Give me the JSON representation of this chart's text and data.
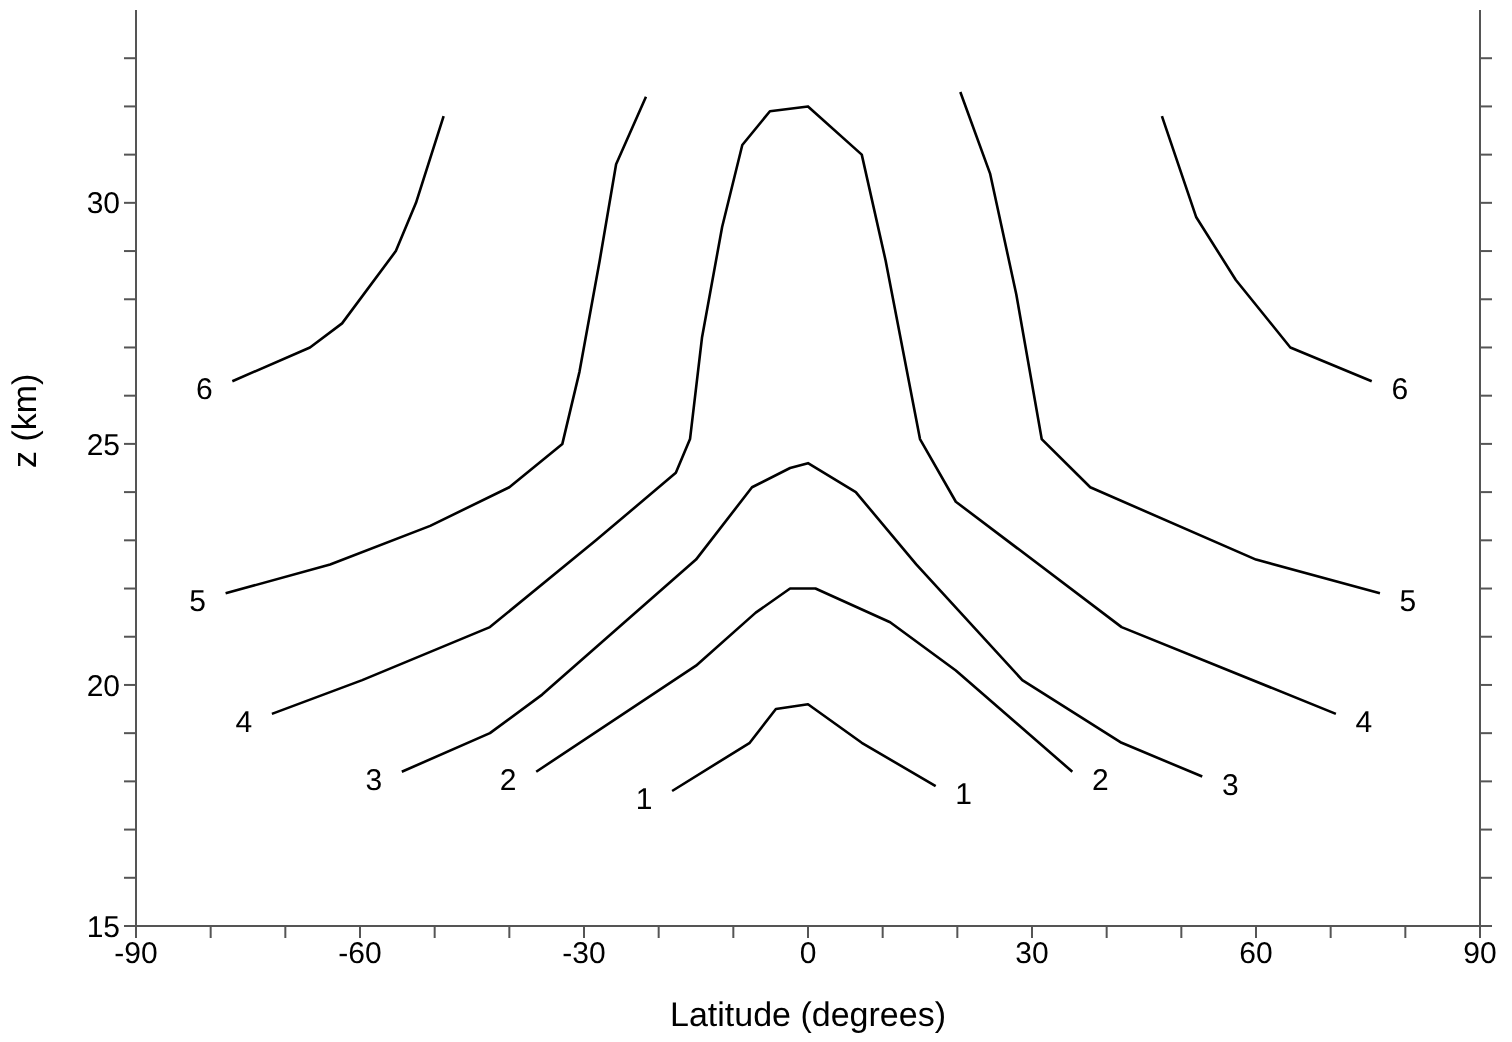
{
  "chart_data": {
    "type": "line",
    "xlabel": "Latitude (degrees)",
    "ylabel": "z (km)",
    "xlim": [
      -90,
      90
    ],
    "ylim": [
      15,
      34
    ],
    "xticks": [
      -90,
      {
        "value": -80,
        "label": null
      },
      {
        "value": -70,
        "label": null
      },
      -60,
      {
        "value": -50,
        "label": null
      },
      {
        "value": -40,
        "label": null
      },
      -30,
      {
        "value": -20,
        "label": null
      },
      {
        "value": -10,
        "label": null
      },
      0,
      {
        "value": 10,
        "label": null
      },
      {
        "value": 20,
        "label": null
      },
      30,
      {
        "value": 40,
        "label": null
      },
      {
        "value": 50,
        "label": null
      },
      60,
      {
        "value": 70,
        "label": null
      },
      {
        "value": 80,
        "label": null
      },
      90
    ],
    "yticks": [
      15,
      {
        "value": 16,
        "label": null
      },
      {
        "value": 17,
        "label": null
      },
      {
        "value": 18,
        "label": null
      },
      {
        "value": 19,
        "label": null
      },
      20,
      {
        "value": 21,
        "label": null
      },
      {
        "value": 22,
        "label": null
      },
      {
        "value": 23,
        "label": null
      },
      {
        "value": 24,
        "label": null
      },
      25,
      {
        "value": 26,
        "label": null
      },
      {
        "value": 27,
        "label": null
      },
      {
        "value": 28,
        "label": null
      },
      {
        "value": 29,
        "label": null
      },
      30,
      {
        "value": 31,
        "label": null
      },
      {
        "value": 32,
        "label": null
      },
      {
        "value": 33,
        "label": null
      }
    ],
    "legend": false,
    "marker": "none",
    "line_style": "solid",
    "series": [
      {
        "name": "1",
        "color": "#000000",
        "x": [
          -18.2,
          -7.8,
          -4.3,
          0,
          7.2,
          17.1
        ],
        "values": [
          17.8,
          18.8,
          19.5,
          19.6,
          18.8,
          17.9
        ]
      },
      {
        "name": "2",
        "color": "#000000",
        "x": [
          -36.4,
          -15,
          -7,
          -2.4,
          1,
          11,
          19.8,
          35.4
        ],
        "values": [
          18.2,
          20.4,
          21.5,
          22,
          22,
          21.3,
          20.3,
          18.2
        ]
      },
      {
        "name": "3",
        "color": "#000000",
        "x": [
          -54.4,
          -42.6,
          -35.6,
          -15,
          -7.5,
          -2.4,
          0,
          6.4,
          14.5,
          28.7,
          42,
          52.8
        ],
        "values": [
          18.2,
          19,
          19.8,
          22.6,
          24.1,
          24.5,
          24.6,
          24,
          22.5,
          20.1,
          18.8,
          18.1
        ]
      },
      {
        "name": "4",
        "color": "#000000",
        "x": [
          -71.8,
          -59.7,
          -42.6,
          -28.4,
          -17.7,
          -15.8,
          -14.2,
          -11.5,
          -8.8,
          -5.1,
          0,
          7.2,
          10.4,
          15,
          19.8,
          42,
          70.7
        ],
        "values": [
          19.4,
          20.1,
          21.2,
          23,
          24.4,
          25.1,
          27.2,
          29.5,
          31.2,
          31.9,
          32,
          31,
          28.8,
          25.1,
          23.8,
          21.2,
          19.4
        ]
      },
      {
        "name": "5",
        "color": "#000000",
        "x": [
          -78,
          -64,
          -50.6,
          -40,
          -32.9,
          -30.6,
          -27.9,
          -25.7,
          -21.7,
          0,
          20.4,
          24.4,
          27.9,
          31.3,
          37.8,
          60,
          76.6
        ],
        "values": [
          21.9,
          22.5,
          23.3,
          24.1,
          25,
          26.5,
          28.8,
          30.8,
          32.2,
          null,
          32.3,
          30.6,
          28.1,
          25.1,
          24.1,
          22.6,
          21.9
        ]
      },
      {
        "name": "6",
        "color": "#000000",
        "x": [
          -77.1,
          -66.7,
          -62.4,
          -55.2,
          -52.5,
          -48.8,
          0,
          47.4,
          52,
          57.3,
          64.6,
          75.5
        ],
        "values": [
          26.3,
          27,
          27.5,
          29,
          30,
          31.8,
          null,
          31.8,
          29.7,
          28.4,
          27,
          26.3
        ]
      }
    ]
  }
}
